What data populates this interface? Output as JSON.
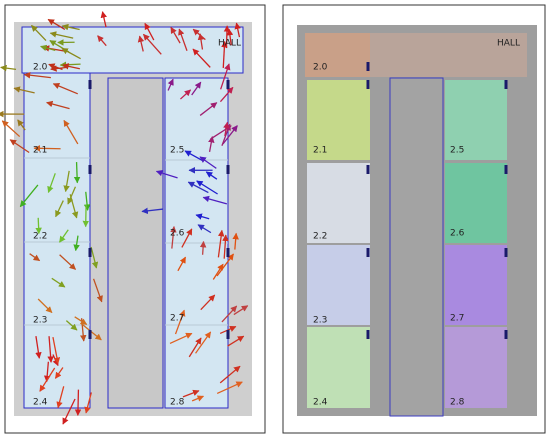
{
  "panels": [
    {
      "hall": "HALL",
      "rooms": [
        "2.0",
        "2.1",
        "2.2",
        "2.3",
        "2.4",
        "2.5",
        "2.6",
        "2.7",
        "2.8"
      ]
    },
    {
      "hall": "HALL",
      "rooms": [
        "2.0",
        "2.1",
        "2.2",
        "2.3",
        "2.4",
        "2.5",
        "2.6",
        "2.7",
        "2.8"
      ]
    }
  ]
}
